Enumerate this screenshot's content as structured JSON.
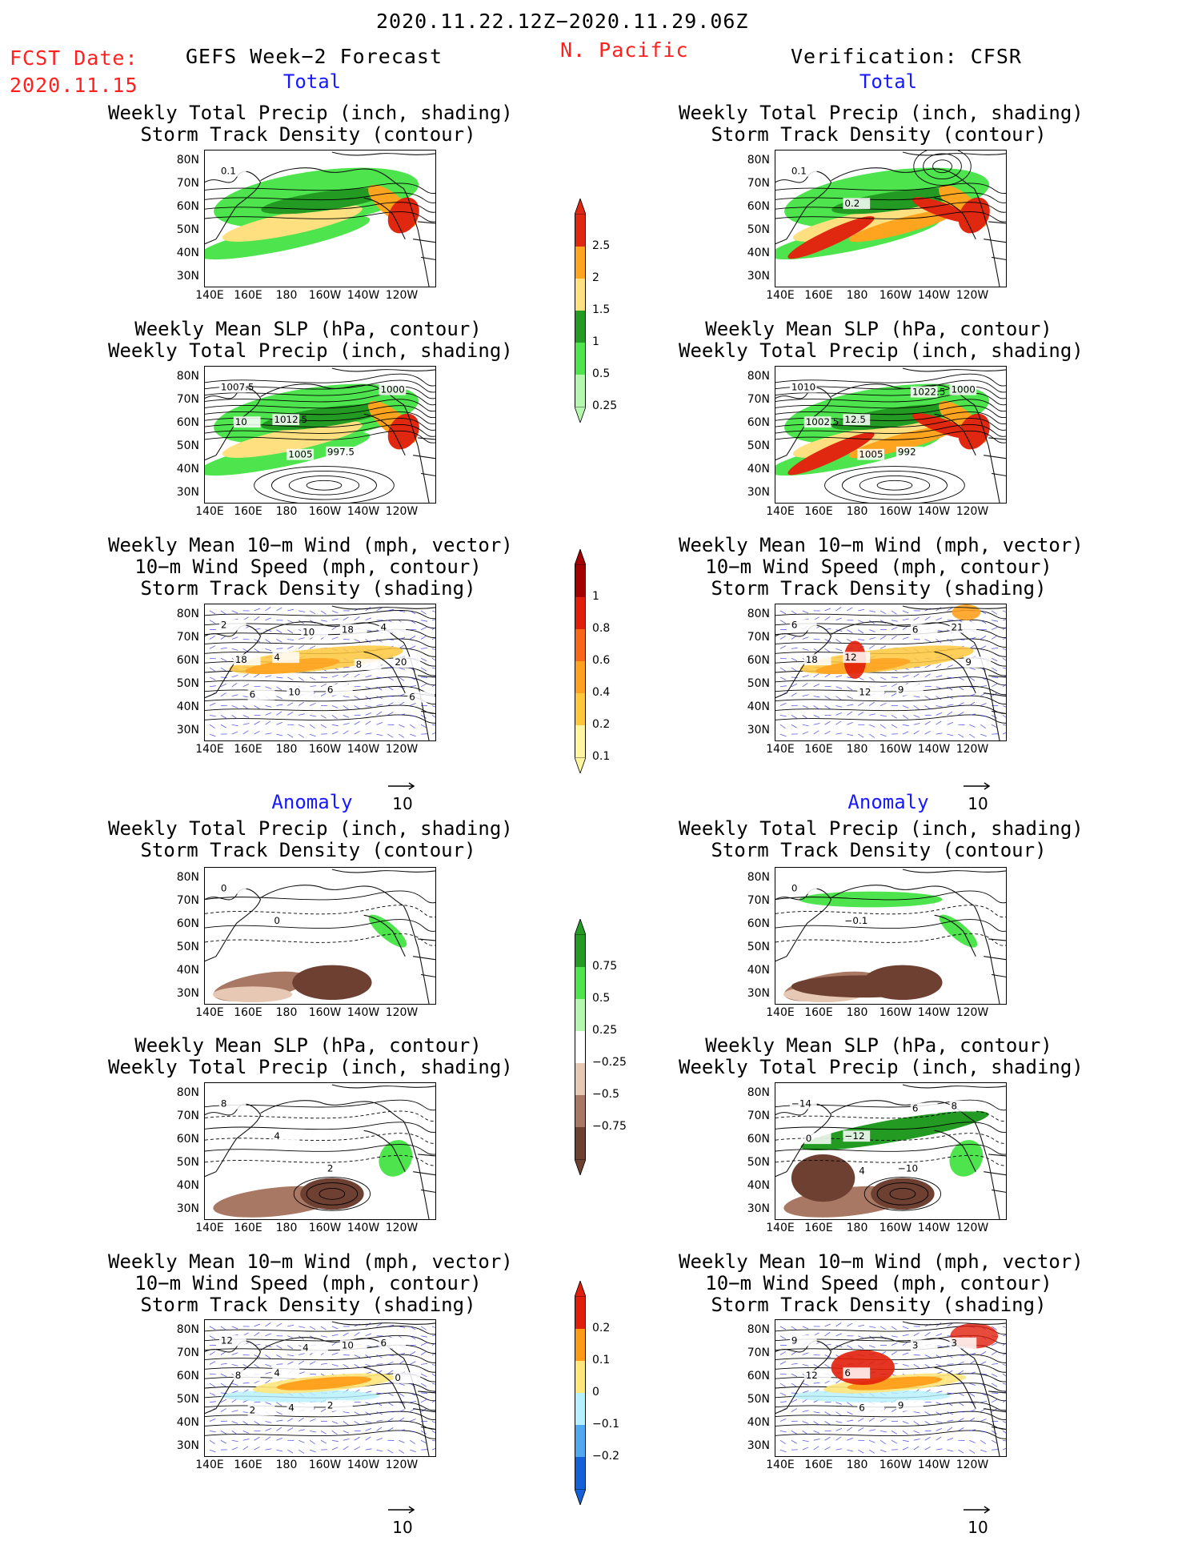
{
  "header": {
    "date_range": "2020.11.22.12Z−2020.11.29.06Z",
    "fcst_label": "FCST Date:",
    "fcst_date": "2020.11.15",
    "forecast_title": "GEFS Week−2 Forecast",
    "region": "N. Pacific",
    "verification_title": "Verification: CFSR"
  },
  "sections": {
    "total": "Total",
    "anomaly": "Anomaly"
  },
  "titles": {
    "precip_storm": [
      "Weekly Total Precip (inch, shading)",
      "Storm Track Density (contour)"
    ],
    "slp_precip": [
      "Weekly Mean SLP (hPa, contour)",
      "Weekly Total Precip (inch, shading)"
    ],
    "wind_storm": [
      "Weekly Mean 10−m Wind (mph, vector)",
      "10−m Wind Speed (mph, contour)",
      "Storm Track Density (shading)"
    ]
  },
  "axes": {
    "lat_ticks": [
      "80N",
      "70N",
      "60N",
      "50N",
      "40N",
      "30N"
    ],
    "lon_ticks": [
      "140E",
      "160E",
      "180",
      "160W",
      "140W",
      "120W"
    ]
  },
  "vector_ref": "10",
  "colorbars": {
    "total_precip": {
      "labels": [
        "2.5",
        "2",
        "1.5",
        "1",
        "0.5",
        "0.25"
      ],
      "colors": [
        "#e02810",
        "#ffa41e",
        "#ffe080",
        "#239b23",
        "#4ee44e",
        "#b6f7b0"
      ]
    },
    "total_storm": {
      "labels": [
        "1",
        "0.8",
        "0.6",
        "0.4",
        "0.2",
        "0.1"
      ],
      "colors": [
        "#a50000",
        "#e11e0a",
        "#f86618",
        "#ffa11e",
        "#ffc83c",
        "#fff5a0"
      ]
    },
    "anom_precip": {
      "labels": [
        "0.75",
        "0.5",
        "0.25",
        "−0.25",
        "−0.5",
        "−0.75"
      ],
      "colors": [
        "#239b23",
        "#4ee44e",
        "#b6f7b0",
        "#ffffff",
        "#e6c8b4",
        "#a87864",
        "#6e4032"
      ]
    },
    "anom_storm": {
      "labels": [
        "0.2",
        "0.1",
        "0",
        "−0.1",
        "−0.2"
      ],
      "colors": [
        "#e11e0a",
        "#ff9a14",
        "#ffe67a",
        "#b4f0ff",
        "#50a8f0",
        "#1460d8"
      ]
    }
  },
  "panel_labels": {
    "gefs_total_precip": [
      "0.1"
    ],
    "cfsr_total_precip": [
      "0.1",
      "0.2"
    ],
    "gefs_total_slp": [
      "1007.5",
      "1012.5",
      "997.5",
      "1000",
      "10",
      "1005"
    ],
    "cfsr_total_slp": [
      "1010",
      "12.5",
      "992",
      "1000",
      "1002.5",
      "1005",
      "1022.5"
    ],
    "gefs_total_wind": [
      "2",
      "4",
      "6",
      "4",
      "18",
      "10",
      "18",
      "20",
      "6",
      "10",
      "8",
      "6"
    ],
    "cfsr_total_wind": [
      "6",
      "12",
      "9",
      "21",
      "18",
      "12",
      "6",
      "9"
    ],
    "gefs_anom_precip": [
      "0",
      "0"
    ],
    "cfsr_anom_precip": [
      "0",
      "−0.1"
    ],
    "gefs_anom_slp": [
      "8",
      "4",
      "2"
    ],
    "cfsr_anom_slp": [
      "−14",
      "−12",
      "−10",
      "8",
      "0",
      "4",
      "6"
    ],
    "gefs_anom_wind": [
      "12",
      "4",
      "2",
      "6",
      "8",
      "4",
      "10",
      "0",
      "2",
      "4"
    ],
    "cfsr_anom_wind": [
      "9",
      "6",
      "9",
      "3",
      "12",
      "6",
      "3"
    ]
  }
}
